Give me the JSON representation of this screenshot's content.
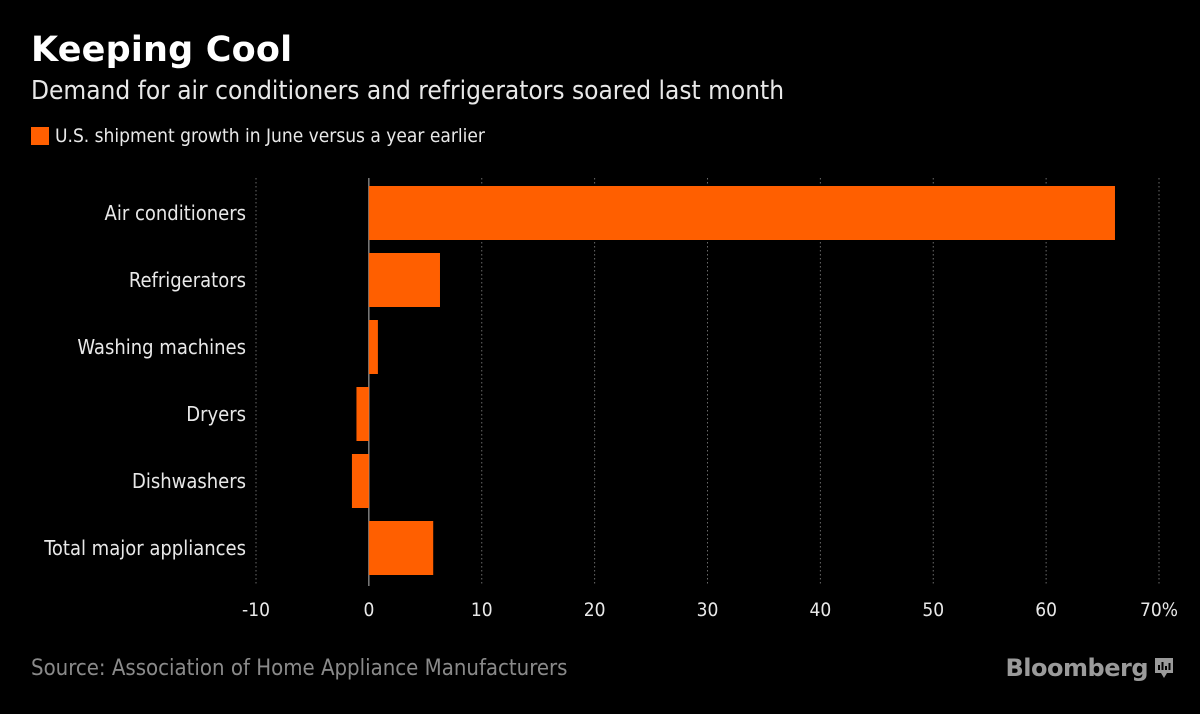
{
  "title": "Keeping Cool",
  "subtitle": "Demand for air conditioners and refrigerators soared last month",
  "legend_label": "U.S. shipment growth in June versus a year earlier",
  "source": "Source: Association of Home Appliance Manufacturers",
  "brand": "Bloomberg",
  "colors": {
    "bar": "#ff5f00",
    "background": "#000000",
    "grid": "#6a6a6a",
    "text": "#e8e8e8"
  },
  "chart_data": {
    "type": "bar",
    "orientation": "horizontal",
    "categories": [
      "Air conditioners",
      "Refrigerators",
      "Washing machines",
      "Dryers",
      "Dishwashers",
      "Total major appliances"
    ],
    "series": [
      {
        "name": "U.S. shipment growth in June versus a year earlier",
        "values": [
          66.1,
          6.3,
          0.8,
          -1.1,
          -1.5,
          5.7
        ]
      }
    ],
    "xlim": [
      -10,
      70
    ],
    "x_ticks": [
      -10,
      0,
      10,
      20,
      30,
      40,
      50,
      60,
      70
    ],
    "x_tick_labels": [
      "-10",
      "0",
      "10",
      "20",
      "30",
      "40",
      "50",
      "60",
      "70%"
    ],
    "grid": true,
    "legend_position": "top-left"
  }
}
